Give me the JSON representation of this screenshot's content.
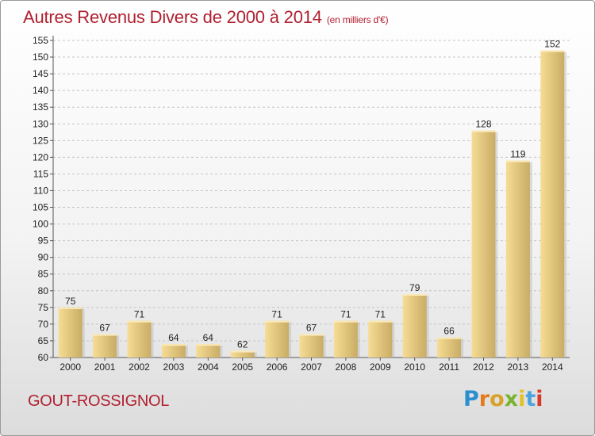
{
  "header": {
    "title": "Autres Revenus Divers de 2000 à 2014",
    "unit": "(en milliers d'€)"
  },
  "footer": {
    "commune": "GOUT-ROSSIGNOL",
    "logo": "Proxiti"
  },
  "colors": {
    "accent": "#b02030",
    "bar_light": "#f6dc94",
    "bar_dark": "#c9ac65",
    "logo_letters": [
      "#2a8ed0",
      "#e37b1c",
      "#d8a12a",
      "#7ab32e",
      "#e2c12a",
      "#4aa3df",
      "#d63a2a"
    ]
  },
  "chart_data": {
    "type": "bar",
    "title": "Autres Revenus Divers de 2000 à 2014",
    "subtitle": "(en milliers d'€)",
    "xlabel": "",
    "ylabel": "",
    "categories": [
      "2000",
      "2001",
      "2002",
      "2003",
      "2004",
      "2005",
      "2006",
      "2007",
      "2008",
      "2009",
      "2010",
      "2011",
      "2012",
      "2013",
      "2014"
    ],
    "values": [
      75,
      67,
      71,
      64,
      64,
      62,
      71,
      67,
      71,
      71,
      79,
      66,
      128,
      119,
      152
    ],
    "ylim": [
      60,
      155
    ],
    "yticks": [
      60,
      65,
      70,
      75,
      80,
      85,
      90,
      95,
      100,
      105,
      110,
      115,
      120,
      125,
      130,
      135,
      140,
      145,
      150,
      155
    ],
    "grid": true,
    "legend": "none"
  }
}
